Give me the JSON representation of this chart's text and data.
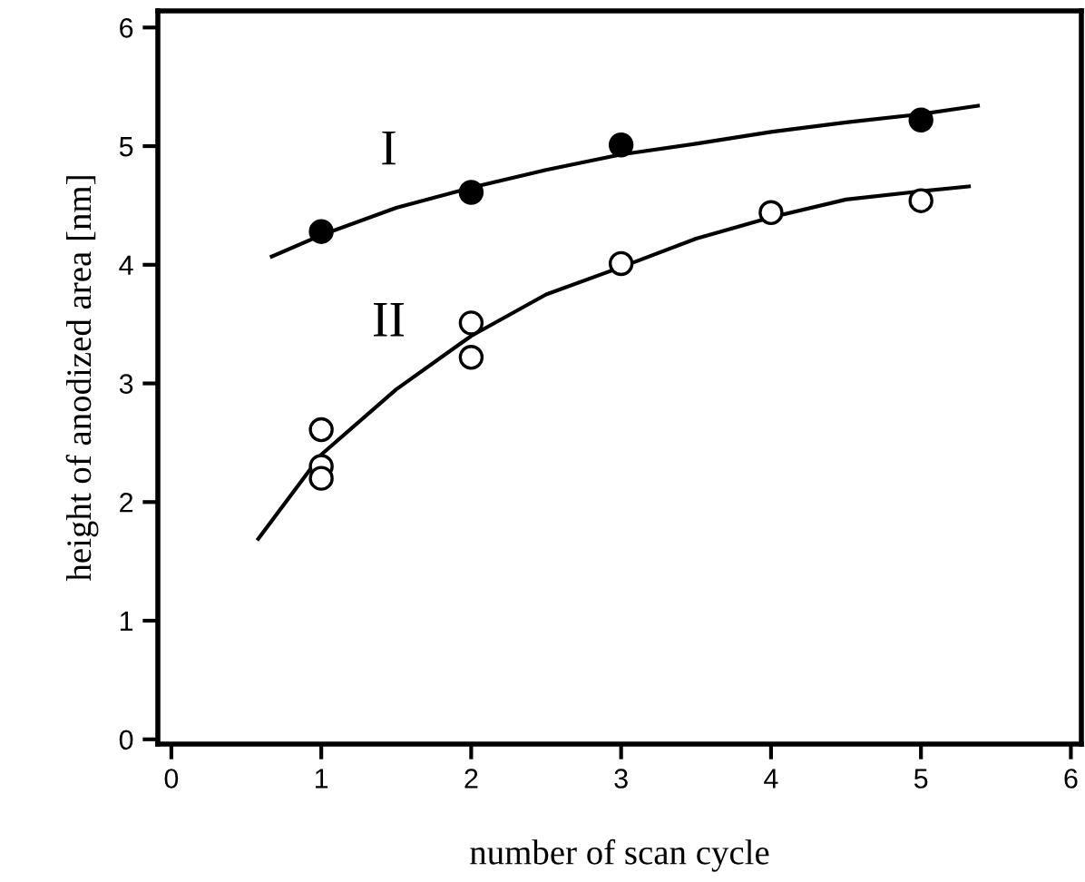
{
  "chart_data": {
    "type": "scatter",
    "xlabel": "number of scan cycle",
    "ylabel": "height of anodized area [nm]",
    "xlim": [
      -0.09,
      6.07
    ],
    "ylim": [
      -0.04,
      6.14
    ],
    "xticks": [
      0,
      1,
      2,
      3,
      4,
      5,
      6
    ],
    "yticks": [
      0,
      1,
      2,
      3,
      4,
      5,
      6
    ],
    "grid": false,
    "legend": false,
    "annotations": [
      "I",
      "II"
    ],
    "series": [
      {
        "marker": "circle",
        "color": "#000000",
        "x": [
          1,
          2,
          3,
          5
        ],
        "values": [
          4.28,
          4.61,
          5.01,
          5.22
        ]
      },
      {
        "marker": "circle",
        "color": "#ffffff",
        "x": [
          1,
          1,
          1,
          2,
          2,
          3,
          4,
          5
        ],
        "values": [
          2.61,
          2.3,
          2.2,
          3.22,
          3.51,
          4.01,
          4.44,
          4.54
        ]
      },
      {
        "type": "line",
        "color": "#000000",
        "x": [
          0.67,
          1.0,
          1.5,
          2.0,
          2.5,
          3.0,
          3.5,
          4.0,
          4.5,
          5.0,
          5.38
        ],
        "values": [
          4.07,
          4.25,
          4.48,
          4.65,
          4.8,
          4.93,
          5.02,
          5.12,
          5.2,
          5.27,
          5.34
        ]
      },
      {
        "type": "line",
        "color": "#000000",
        "x": [
          0.58,
          1.0,
          1.5,
          2.0,
          2.5,
          3.0,
          3.5,
          4.0,
          4.5,
          5.0,
          5.32
        ],
        "values": [
          1.69,
          2.4,
          2.95,
          3.4,
          3.75,
          3.98,
          4.22,
          4.4,
          4.55,
          4.62,
          4.66
        ]
      }
    ]
  }
}
